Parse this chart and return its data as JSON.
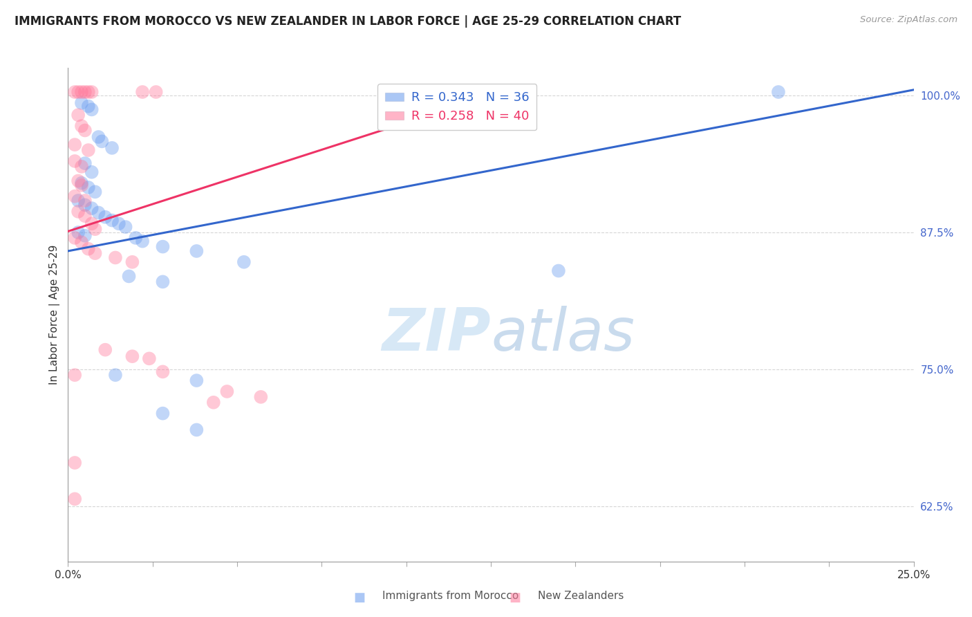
{
  "title": "IMMIGRANTS FROM MOROCCO VS NEW ZEALANDER IN LABOR FORCE | AGE 25-29 CORRELATION CHART",
  "source": "Source: ZipAtlas.com",
  "ylabel": "In Labor Force | Age 25-29",
  "yticks": [
    0.625,
    0.75,
    0.875,
    1.0
  ],
  "ytick_labels": [
    "62.5%",
    "75.0%",
    "87.5%",
    "100.0%"
  ],
  "xlim": [
    0.0,
    0.25
  ],
  "ylim": [
    0.575,
    1.025
  ],
  "legend_label_blue": "Immigrants from Morocco",
  "legend_label_pink": "New Zealanders",
  "blue_color": "#6699ee",
  "pink_color": "#ff7799",
  "blue_scatter": [
    [
      0.004,
      0.993
    ],
    [
      0.006,
      0.99
    ],
    [
      0.007,
      0.987
    ],
    [
      0.009,
      0.962
    ],
    [
      0.01,
      0.958
    ],
    [
      0.013,
      0.952
    ],
    [
      0.005,
      0.938
    ],
    [
      0.007,
      0.93
    ],
    [
      0.004,
      0.92
    ],
    [
      0.006,
      0.916
    ],
    [
      0.008,
      0.912
    ],
    [
      0.003,
      0.904
    ],
    [
      0.005,
      0.9
    ],
    [
      0.007,
      0.897
    ],
    [
      0.009,
      0.893
    ],
    [
      0.011,
      0.889
    ],
    [
      0.013,
      0.886
    ],
    [
      0.015,
      0.883
    ],
    [
      0.017,
      0.88
    ],
    [
      0.003,
      0.875
    ],
    [
      0.005,
      0.872
    ],
    [
      0.02,
      0.87
    ],
    [
      0.022,
      0.867
    ],
    [
      0.028,
      0.862
    ],
    [
      0.038,
      0.858
    ],
    [
      0.052,
      0.848
    ],
    [
      0.018,
      0.835
    ],
    [
      0.028,
      0.83
    ],
    [
      0.014,
      0.745
    ],
    [
      0.038,
      0.74
    ],
    [
      0.028,
      0.71
    ],
    [
      0.038,
      0.695
    ],
    [
      0.145,
      0.84
    ],
    [
      0.21,
      1.003
    ]
  ],
  "pink_scatter": [
    [
      0.002,
      1.003
    ],
    [
      0.003,
      1.003
    ],
    [
      0.004,
      1.003
    ],
    [
      0.005,
      1.003
    ],
    [
      0.006,
      1.003
    ],
    [
      0.007,
      1.003
    ],
    [
      0.022,
      1.003
    ],
    [
      0.026,
      1.003
    ],
    [
      0.003,
      0.982
    ],
    [
      0.004,
      0.972
    ],
    [
      0.005,
      0.968
    ],
    [
      0.002,
      0.955
    ],
    [
      0.006,
      0.95
    ],
    [
      0.002,
      0.94
    ],
    [
      0.004,
      0.935
    ],
    [
      0.003,
      0.922
    ],
    [
      0.004,
      0.918
    ],
    [
      0.002,
      0.908
    ],
    [
      0.005,
      0.904
    ],
    [
      0.003,
      0.894
    ],
    [
      0.005,
      0.89
    ],
    [
      0.007,
      0.883
    ],
    [
      0.008,
      0.878
    ],
    [
      0.002,
      0.87
    ],
    [
      0.004,
      0.866
    ],
    [
      0.006,
      0.86
    ],
    [
      0.008,
      0.856
    ],
    [
      0.014,
      0.852
    ],
    [
      0.019,
      0.848
    ],
    [
      0.011,
      0.768
    ],
    [
      0.019,
      0.762
    ],
    [
      0.024,
      0.76
    ],
    [
      0.002,
      0.745
    ],
    [
      0.047,
      0.73
    ],
    [
      0.057,
      0.725
    ],
    [
      0.002,
      0.665
    ],
    [
      0.002,
      0.632
    ],
    [
      0.028,
      0.748
    ],
    [
      0.043,
      0.72
    ]
  ],
  "blue_line_x": [
    0.0,
    0.25
  ],
  "blue_line_y": [
    0.858,
    1.005
  ],
  "pink_line_x": [
    0.0,
    0.12
  ],
  "pink_line_y": [
    0.876,
    0.995
  ],
  "watermark_zip": "ZIP",
  "watermark_atlas": "atlas",
  "background_color": "#ffffff",
  "grid_color": "#cccccc",
  "xticks": [
    0.0,
    0.025,
    0.05,
    0.075,
    0.1,
    0.125,
    0.15,
    0.175,
    0.2,
    0.225,
    0.25
  ]
}
